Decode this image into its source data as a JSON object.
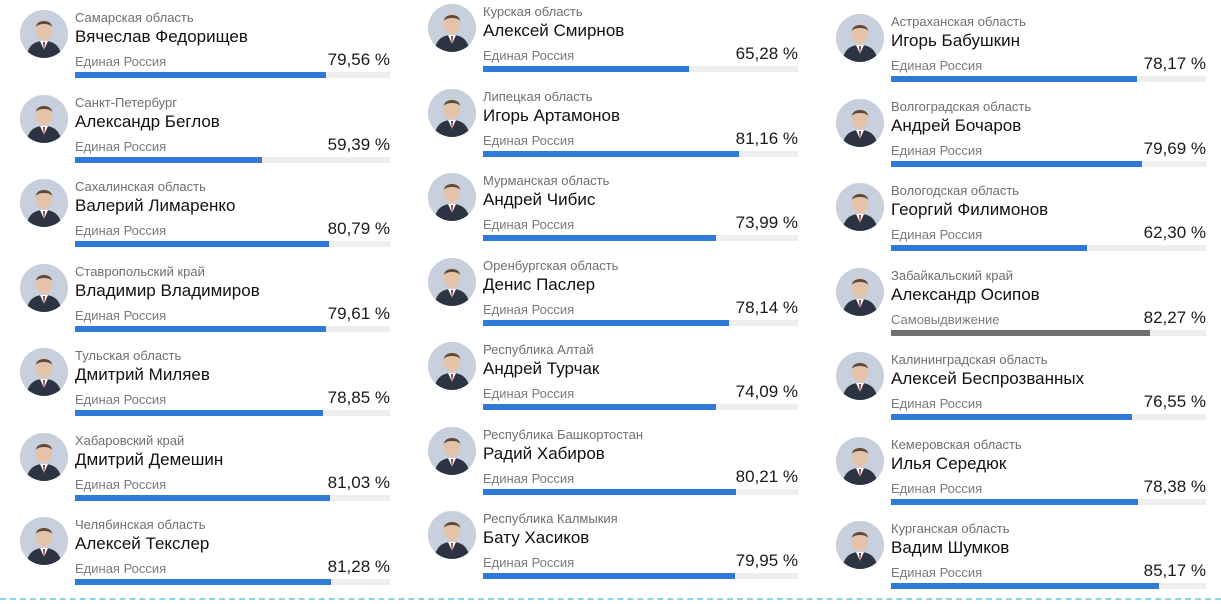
{
  "chart_data": {
    "type": "bar",
    "orientation": "horizontal",
    "value_unit": "%",
    "xlim": [
      0,
      100
    ],
    "colors": {
      "united_russia": "#2f79d9",
      "self_nominated": "#707070",
      "track": "#eeeeee"
    },
    "columns": [
      [
        {
          "region": "Самарская область",
          "name": "Вячеслав Федорищев",
          "party": "Единая Россия",
          "value": 79.56,
          "label": "79,56 %"
        },
        {
          "region": "Санкт-Петербург",
          "name": "Александр Беглов",
          "party": "Единая Россия",
          "value": 59.39,
          "label": "59,39 %"
        },
        {
          "region": "Сахалинская область",
          "name": "Валерий Лимаренко",
          "party": "Единая Россия",
          "value": 80.79,
          "label": "80,79 %"
        },
        {
          "region": "Ставропольский край",
          "name": "Владимир Владимиров",
          "party": "Единая Россия",
          "value": 79.61,
          "label": "79,61 %"
        },
        {
          "region": "Тульская область",
          "name": "Дмитрий Миляев",
          "party": "Единая Россия",
          "value": 78.85,
          "label": "78,85 %"
        },
        {
          "region": "Хабаровский край",
          "name": "Дмитрий Демешин",
          "party": "Единая Россия",
          "value": 81.03,
          "label": "81,03 %"
        },
        {
          "region": "Челябинская область",
          "name": "Алексей Текслер",
          "party": "Единая Россия",
          "value": 81.28,
          "label": "81,28 %"
        }
      ],
      [
        {
          "region": "Курская область",
          "name": "Алексей Смирнов",
          "party": "Единая Россия",
          "value": 65.28,
          "label": "65,28 %"
        },
        {
          "region": "Липецкая область",
          "name": "Игорь Артамонов",
          "party": "Единая Россия",
          "value": 81.16,
          "label": "81,16 %"
        },
        {
          "region": "Мурманская область",
          "name": "Андрей Чибис",
          "party": "Единая Россия",
          "value": 73.99,
          "label": "73,99 %"
        },
        {
          "region": "Оренбургская область",
          "name": "Денис Паслер",
          "party": "Единая Россия",
          "value": 78.14,
          "label": "78,14 %"
        },
        {
          "region": "Республика Алтай",
          "name": "Андрей Турчак",
          "party": "Единая Россия",
          "value": 74.09,
          "label": "74,09 %"
        },
        {
          "region": "Республика Башкортостан",
          "name": "Радий Хабиров",
          "party": "Единая Россия",
          "value": 80.21,
          "label": "80,21 %"
        },
        {
          "region": "Республика Калмыкия",
          "name": "Бату Хасиков",
          "party": "Единая Россия",
          "value": 79.95,
          "label": "79,95 %"
        }
      ],
      [
        {
          "region": "Астраханская область",
          "name": "Игорь Бабушкин",
          "party": "Единая Россия",
          "value": 78.17,
          "label": "78,17 %"
        },
        {
          "region": "Волгоградская область",
          "name": "Андрей Бочаров",
          "party": "Единая Россия",
          "value": 79.69,
          "label": "79,69 %"
        },
        {
          "region": "Вологодская область",
          "name": "Георгий Филимонов",
          "party": "Единая Россия",
          "value": 62.3,
          "label": "62,30 %"
        },
        {
          "region": "Забайкальский край",
          "name": "Александр Осипов",
          "party": "Самовыдвижение",
          "value": 82.27,
          "label": "82,27 %"
        },
        {
          "region": "Калининградская область",
          "name": "Алексей Беспрозванных",
          "party": "Единая Россия",
          "value": 76.55,
          "label": "76,55 %"
        },
        {
          "region": "Кемеровская область",
          "name": "Илья Середюк",
          "party": "Единая Россия",
          "value": 78.38,
          "label": "78,38 %"
        },
        {
          "region": "Курганская область",
          "name": "Вадим Шумков",
          "party": "Единая Россия",
          "value": 85.17,
          "label": "85,17 %"
        }
      ]
    ]
  }
}
